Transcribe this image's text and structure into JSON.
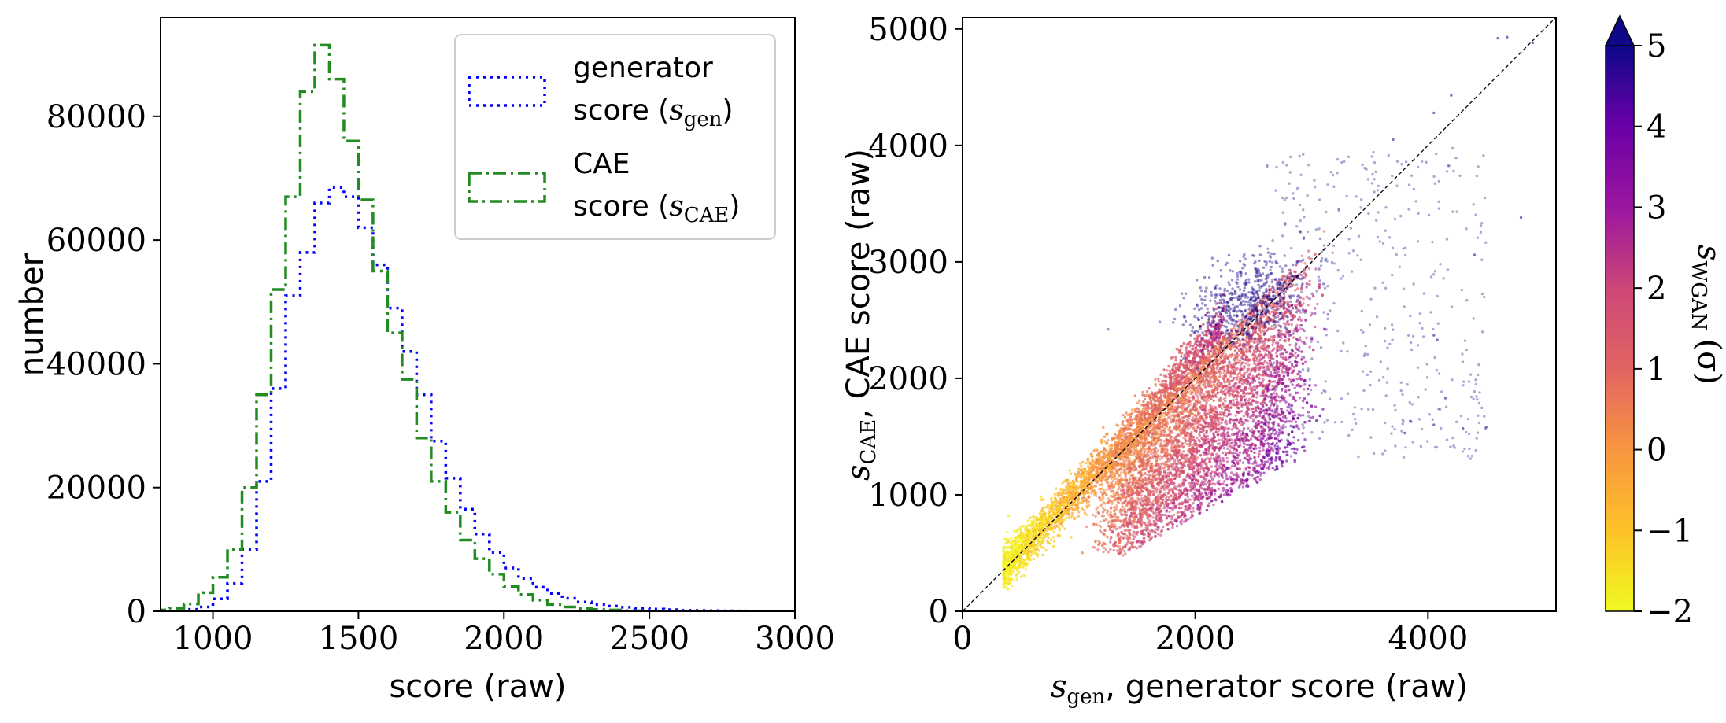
{
  "chart_data": [
    {
      "type": "histogram",
      "xlabel": "score (raw)",
      "ylabel": "number",
      "xlim": [
        820,
        3000
      ],
      "ylim": [
        0,
        96000
      ],
      "x_ticks": [
        "1000",
        "1500",
        "2000",
        "2500",
        "3000"
      ],
      "y_ticks": [
        "0",
        "20000",
        "40000",
        "60000",
        "80000"
      ],
      "bin_edges": [
        800,
        850,
        900,
        950,
        1000,
        1050,
        1100,
        1150,
        1200,
        1250,
        1300,
        1350,
        1400,
        1450,
        1500,
        1550,
        1600,
        1650,
        1700,
        1750,
        1800,
        1850,
        1900,
        1950,
        2000,
        2050,
        2100,
        2150,
        2200,
        2250,
        2300,
        2350,
        2400,
        2450,
        2500,
        2550,
        2600,
        2650,
        2700,
        2750,
        2800,
        2850,
        2900,
        2950,
        3000
      ],
      "legend_position": "upper right",
      "series": [
        {
          "name": "generator score",
          "name_math": "s_gen",
          "name_line1": "generator",
          "name_line2_prefix": "score (",
          "name_line2_math": "s",
          "name_line2_sub": "gen",
          "name_line2_suffix": ")",
          "color": "#0000ff",
          "linestyle": "dotted",
          "counts": [
            0,
            0,
            300,
            700,
            2000,
            4500,
            10000,
            21000,
            36000,
            51000,
            58000,
            66000,
            68500,
            67000,
            62000,
            56000,
            49000,
            42000,
            35000,
            27500,
            21500,
            16500,
            12500,
            9500,
            7000,
            5300,
            3900,
            2900,
            2100,
            1500,
            1100,
            850,
            650,
            500,
            350,
            250,
            150,
            120,
            90,
            60,
            40,
            30,
            20,
            10
          ]
        },
        {
          "name": "CAE score",
          "name_math": "s_CAE",
          "name_line1": "CAE",
          "name_line2_prefix": "score (",
          "name_line2_math": "s",
          "name_line2_sub": "CAE",
          "name_line2_suffix": ")",
          "color": "#228b22",
          "linestyle": "dashdot",
          "counts": [
            200,
            500,
            1200,
            3000,
            5500,
            10000,
            20000,
            35000,
            52000,
            67000,
            84000,
            91500,
            86000,
            76000,
            66500,
            55000,
            45000,
            37500,
            28000,
            21000,
            16000,
            11500,
            8500,
            6000,
            4000,
            2700,
            1800,
            1100,
            700,
            450,
            300,
            200,
            100,
            60,
            40,
            20,
            10,
            0,
            0,
            0,
            0,
            0,
            0,
            0
          ]
        }
      ]
    },
    {
      "type": "scatter",
      "xlabel_math": "s",
      "xlabel_sub": "gen",
      "xlabel_text": ", generator score (raw)",
      "ylabel_math": "s",
      "ylabel_sub": "CAE",
      "ylabel_text": ", CAE score (raw)",
      "xlim": [
        0,
        5100
      ],
      "ylim": [
        0,
        5100
      ],
      "x_ticks": [
        "0",
        "2000",
        "4000"
      ],
      "y_ticks": [
        "0",
        "1000",
        "2000",
        "3000",
        "4000",
        "5000"
      ],
      "reference_line": "y = x (dashed, black)",
      "points_description": "dense cloud of roughly 500k points spanning x 300–5000, y 300–5000, colored by sWGAN",
      "approximate_points": [
        {
          "x": 400,
          "y": 380,
          "c": -1.9
        },
        {
          "x": 700,
          "y": 720,
          "c": -1.5
        },
        {
          "x": 900,
          "y": 920,
          "c": -1.2
        },
        {
          "x": 1100,
          "y": 1150,
          "c": -0.8
        },
        {
          "x": 1300,
          "y": 1400,
          "c": -0.4
        },
        {
          "x": 1500,
          "y": 1700,
          "c": 0.2
        },
        {
          "x": 1700,
          "y": 2000,
          "c": 0.8
        },
        {
          "x": 1900,
          "y": 2300,
          "c": 1.4
        },
        {
          "x": 1600,
          "y": 600,
          "c": 0.3
        },
        {
          "x": 2000,
          "y": 900,
          "c": 1.5
        },
        {
          "x": 2400,
          "y": 1400,
          "c": 2.5
        },
        {
          "x": 2700,
          "y": 1800,
          "c": 3.5
        },
        {
          "x": 2900,
          "y": 2300,
          "c": 4.2
        },
        {
          "x": 2500,
          "y": 2700,
          "c": 4.8
        },
        {
          "x": 3200,
          "y": 3000,
          "c": 5.0
        },
        {
          "x": 3700,
          "y": 4050,
          "c": 5.0
        },
        {
          "x": 4100,
          "y": 4400,
          "c": 5.0
        },
        {
          "x": 4800,
          "y": 3400,
          "c": 5.0
        },
        {
          "x": 4700,
          "y": 4900,
          "c": 5.0
        }
      ]
    },
    {
      "type": "colorbar",
      "label_math": "s",
      "label_sub": "WGAN",
      "label_text": "(σ)",
      "range": [
        -2,
        5
      ],
      "extend": "max",
      "colormap": "plasma_r",
      "ticks": [
        "−2",
        "−1",
        "0",
        "1",
        "2",
        "3",
        "4",
        "5"
      ]
    }
  ]
}
